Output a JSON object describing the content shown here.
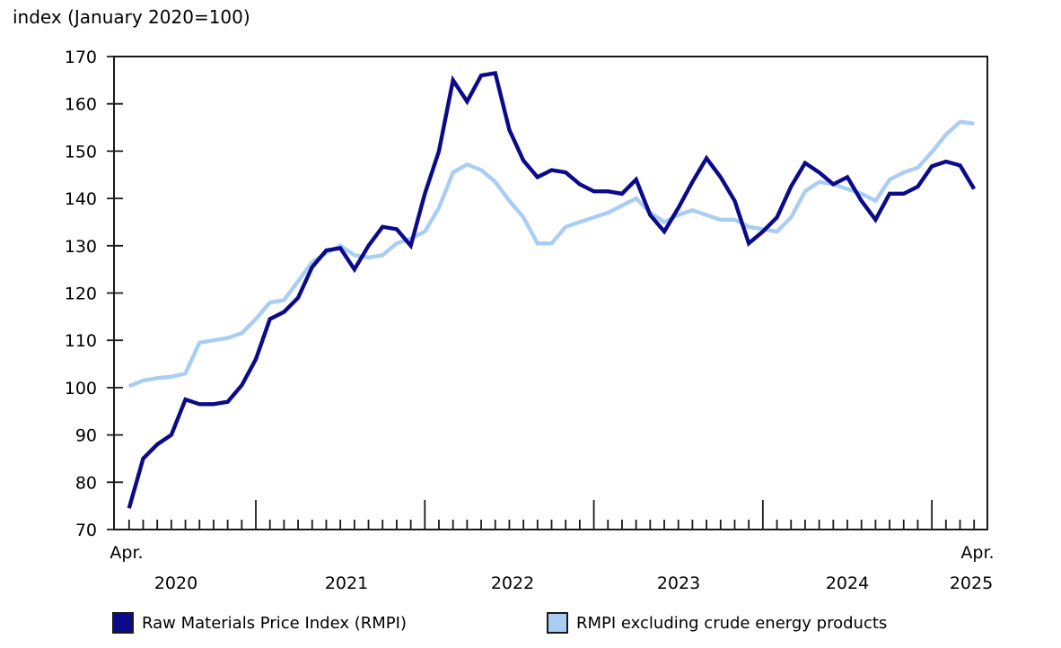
{
  "chart_data": {
    "type": "line",
    "title": "index (January 2020=100)",
    "x_axis": {
      "start_label": "Apr.",
      "end_label": "Apr.",
      "year_labels": [
        "2020",
        "2021",
        "2022",
        "2023",
        "2024",
        "2025"
      ],
      "frequency": "monthly",
      "first_month": "April 2020",
      "last_month": "April 2025",
      "minor_tick_every_month": true,
      "long_tick_at_january": true
    },
    "y_axis": {
      "min": 70,
      "max": 170,
      "ticks": [
        70,
        80,
        90,
        100,
        110,
        120,
        130,
        140,
        150,
        160,
        170
      ]
    },
    "grid": "off",
    "legend_position": "bottom",
    "series": [
      {
        "name": "Raw Materials Price Index (RMPI)",
        "color": "#0a0a8b",
        "start": "2020-04",
        "values": [
          74.5,
          85,
          88,
          90,
          97.5,
          96.5,
          96.5,
          97,
          100.5,
          106,
          114.5,
          116,
          119,
          125.5,
          129,
          129.5,
          125,
          130,
          134,
          133.5,
          130,
          141,
          150,
          165,
          160.5,
          166,
          166.5,
          154.5,
          148,
          144.5,
          146,
          145.5,
          143,
          141.5,
          141.5,
          141,
          144,
          136.5,
          133,
          138,
          143.5,
          148.5,
          144.5,
          139.5,
          130.5,
          133,
          136,
          142.5,
          147.5,
          145.5,
          143,
          144.5,
          139.5,
          135.5,
          141,
          141,
          142.5,
          146.8,
          147.8,
          147,
          142
        ]
      },
      {
        "name": "RMPI excluding crude energy products",
        "color": "#a9cdf3",
        "start": "2020-04",
        "values": [
          100.3,
          101.5,
          102,
          102.3,
          103,
          109.5,
          110,
          110.5,
          111.5,
          114.5,
          118,
          118.5,
          122.5,
          126.5,
          128.5,
          130,
          128,
          127.5,
          128,
          130.5,
          131.5,
          133,
          138,
          145.5,
          147.2,
          146,
          143.5,
          139.5,
          136,
          130.5,
          130.5,
          134,
          135,
          136,
          137,
          138.5,
          140,
          137,
          135,
          136.5,
          137.5,
          136.5,
          135.5,
          135.5,
          134,
          133.5,
          133,
          136,
          141.5,
          143.5,
          143,
          142,
          141,
          139.5,
          144,
          145.5,
          146.5,
          149.8,
          153.5,
          156.2,
          155.8
        ]
      }
    ]
  }
}
